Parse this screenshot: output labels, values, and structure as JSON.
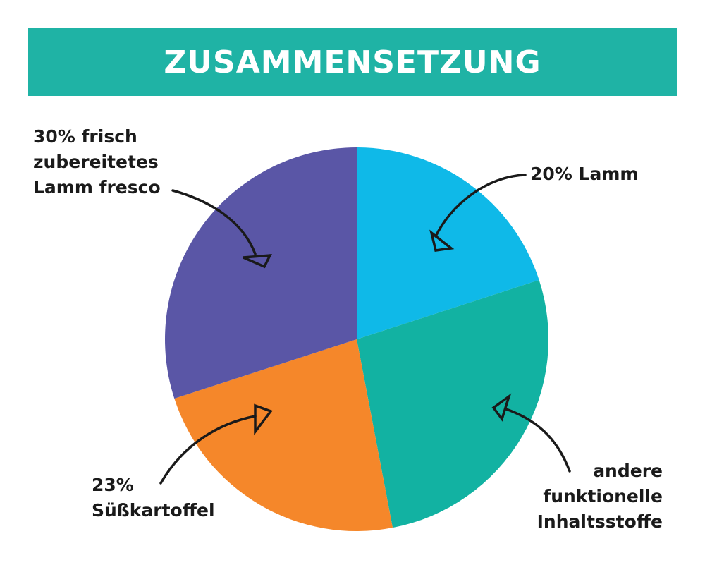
{
  "header": {
    "title": "ZUSAMMENSETZUNG"
  },
  "chart_data": {
    "type": "pie",
    "title": "ZUSAMMENSETZUNG",
    "slices": [
      {
        "label": "20% Lamm",
        "value": 20,
        "color": "#0fb9e8"
      },
      {
        "label": "andere funktionelle Inhaltsstoffe",
        "value": 27,
        "color": "#12b2a2"
      },
      {
        "label": "23% Süßkartoffel",
        "value": 23,
        "color": "#f5872a"
      },
      {
        "label": "30% frisch zubereitetes Lamm fresco",
        "value": 30,
        "color": "#5a56a6"
      }
    ]
  },
  "labels": {
    "lamm": "20% Lamm",
    "andere": "andere\nfunktionelle\nInhaltsstoffe",
    "suess": "23%\nSüßkartoffel",
    "frisch": "30% frisch\nzubereitetes\nLamm fresco"
  }
}
